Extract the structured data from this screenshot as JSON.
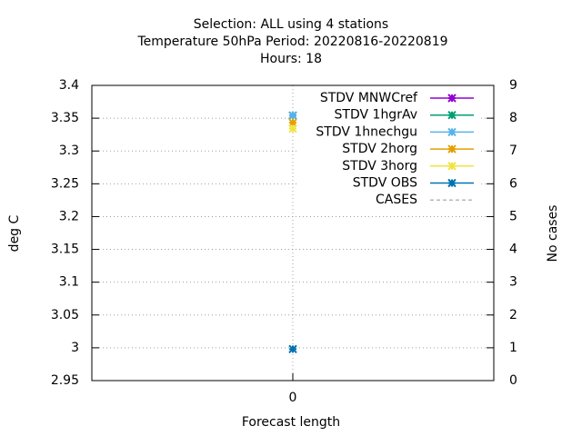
{
  "chart_data": {
    "type": "line",
    "title": [
      "Selection: ALL using     4 stations",
      "Temperature 50hPa   Period: 20220816-20220819",
      "Hours:  18"
    ],
    "xlabel": "Forecast length",
    "ylabel": "deg C",
    "y2label": "No cases",
    "x": [
      0
    ],
    "xlim": [
      -1,
      1
    ],
    "xticks": [
      0
    ],
    "ylim": [
      2.95,
      3.4
    ],
    "yticks": [
      {
        "value": 2.95,
        "label": "2.95"
      },
      {
        "value": 3,
        "label": "3"
      },
      {
        "value": 3.05,
        "label": "3.05"
      },
      {
        "value": 3.1,
        "label": "3.1"
      },
      {
        "value": 3.15,
        "label": "3.15"
      },
      {
        "value": 3.2,
        "label": "3.2"
      },
      {
        "value": 3.25,
        "label": "3.25"
      },
      {
        "value": 3.3,
        "label": "3.3"
      },
      {
        "value": 3.35,
        "label": "3.35"
      },
      {
        "value": 3.4,
        "label": "3.4"
      }
    ],
    "y2lim": [
      0,
      9
    ],
    "y2ticks": [
      0,
      1,
      2,
      3,
      4,
      5,
      6,
      7,
      8,
      9
    ],
    "grid": true,
    "legend": "top-right",
    "series": [
      {
        "name": "STDV MNWCref",
        "color": "#9400d3",
        "values": [
          3.354
        ]
      },
      {
        "name": "STDV 1hgrAv",
        "color": "#009e73",
        "values": [
          3.354
        ]
      },
      {
        "name": "STDV 1hnechgu",
        "color": "#56b4e9",
        "values": [
          3.354
        ]
      },
      {
        "name": "STDV 2horg",
        "color": "#e69f00",
        "values": [
          3.343
        ]
      },
      {
        "name": "STDV 3horg",
        "color": "#f0e442",
        "values": [
          3.334
        ]
      },
      {
        "name": "STDV OBS",
        "color": "#0072b2",
        "values": [
          2.998
        ]
      },
      {
        "name": "CASES",
        "color": "#a0a0a0",
        "axis": "y2",
        "dashed": true,
        "values": [
          null
        ]
      }
    ]
  }
}
